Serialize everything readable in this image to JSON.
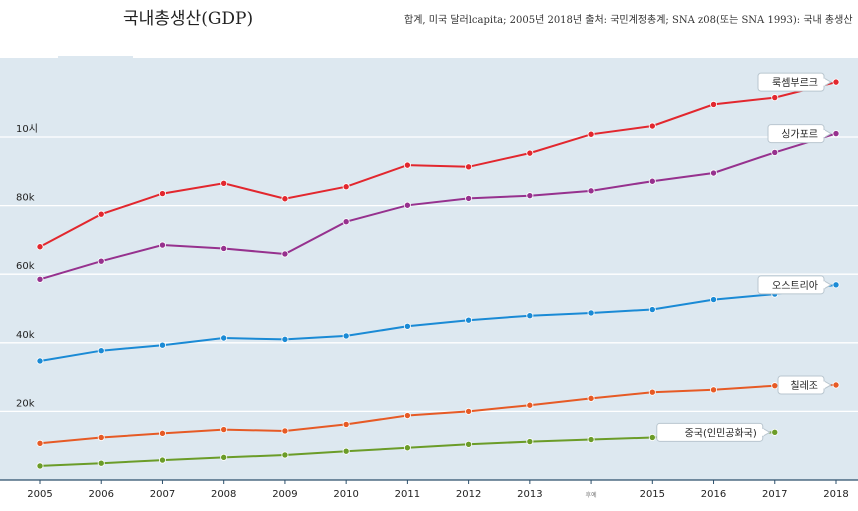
{
  "page": {
    "title": "국내총생산(GDP)",
    "subtitle": "합계, 미국 달러lcapita; 2005년 2018년 출처: 국민계정총계; SNA z08(또는 SNA 1993): 국내 총생산"
  },
  "chart_data": {
    "type": "line",
    "x": [
      2005,
      2006,
      2007,
      2008,
      2009,
      2010,
      2011,
      2012,
      2013,
      2014,
      2015,
      2016,
      2017,
      2018
    ],
    "x_tick_labels": [
      "2005",
      "2006",
      "2007",
      "2008",
      "2009",
      "2010",
      "2011",
      "2012",
      "2013",
      "후예",
      "2015",
      "2016",
      "2017",
      "2018"
    ],
    "y_tick_labels": [
      "20k",
      "40k",
      "60k",
      "80k",
      "10시"
    ],
    "y_ticks": [
      20000,
      40000,
      60000,
      80000,
      100000
    ],
    "ylim": [
      0,
      120000
    ],
    "grid": true,
    "series": [
      {
        "name": "룩셈부르크",
        "color": "#e2272e",
        "label_year": 2018,
        "values": [
          68000,
          77500,
          83500,
          86500,
          82000,
          85500,
          91800,
          91300,
          95300,
          100800,
          103200,
          109500,
          111500,
          116000
        ]
      },
      {
        "name": "싱가포르",
        "color": "#96318e",
        "label_year": 2018,
        "values": [
          58500,
          63800,
          68500,
          67500,
          65900,
          75300,
          80100,
          82100,
          82900,
          84300,
          87100,
          89500,
          95500,
          101000
        ]
      },
      {
        "name": "오스트리아",
        "color": "#1a8ad5",
        "label_year": 2018,
        "values": [
          34700,
          37700,
          39300,
          41400,
          41000,
          42000,
          44800,
          46600,
          47900,
          48700,
          49700,
          52600,
          54200,
          56900
        ]
      },
      {
        "name": "칠레조",
        "color": "#e65a25",
        "label_year": 2018,
        "values": [
          10700,
          12400,
          13600,
          14700,
          14300,
          16200,
          18800,
          20000,
          21800,
          23800,
          25600,
          26300,
          27500,
          27700
        ]
      },
      {
        "name": "중국(인민공화국)",
        "color": "#6b9c28",
        "label_year": 2017,
        "values": [
          4100,
          4900,
          5800,
          6600,
          7300,
          8400,
          9400,
          10400,
          11200,
          11800,
          12400,
          13100,
          13900,
          null
        ]
      }
    ]
  }
}
